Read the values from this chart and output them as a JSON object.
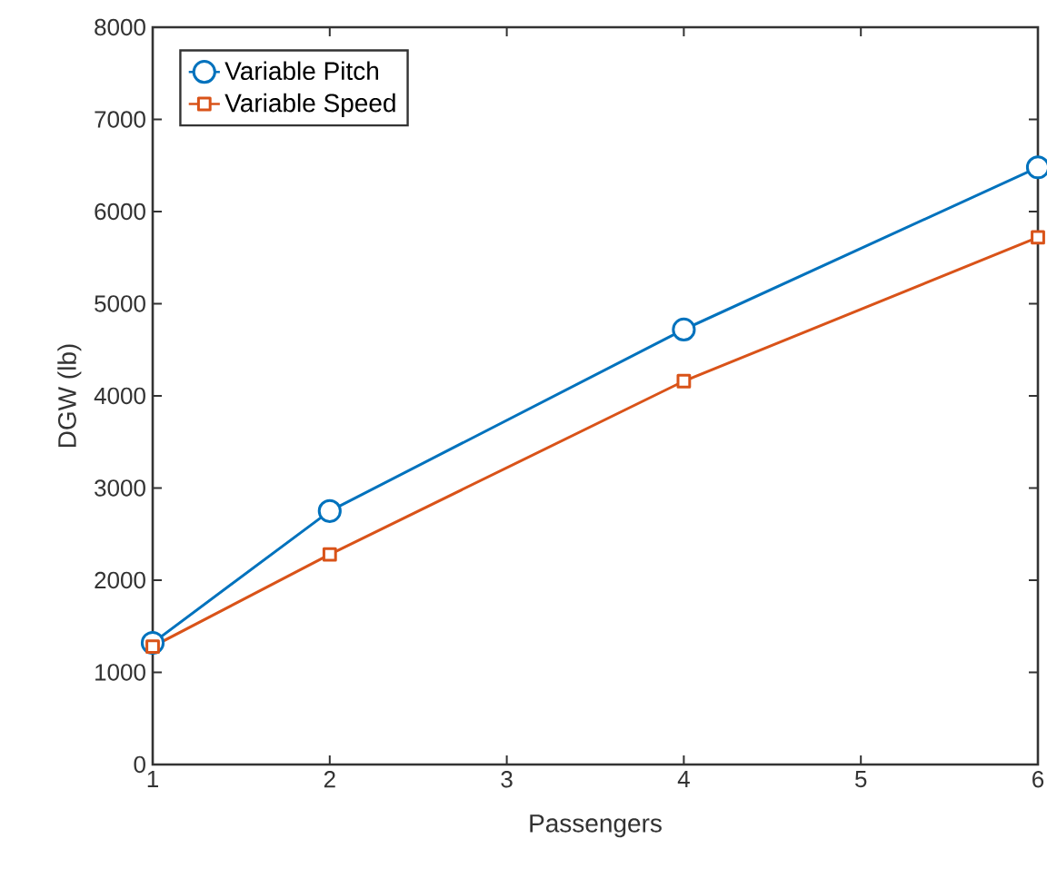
{
  "chart_data": {
    "type": "line",
    "xlabel": "Passengers",
    "ylabel": "DGW (lb)",
    "x": [
      1,
      2,
      4,
      6
    ],
    "series": [
      {
        "name": "Variable Pitch",
        "color": "#0072bd",
        "marker": "circle",
        "values": [
          1320,
          2750,
          4720,
          6480
        ]
      },
      {
        "name": "Variable Speed",
        "color": "#d95319",
        "marker": "square",
        "values": [
          1280,
          2280,
          4160,
          5720
        ]
      }
    ],
    "xlim": [
      1,
      6
    ],
    "xticks": [
      1,
      2,
      3,
      4,
      5,
      6
    ],
    "ylim": [
      0,
      8000
    ],
    "yticks": [
      0,
      1000,
      2000,
      3000,
      4000,
      5000,
      6000,
      7000,
      8000
    ],
    "grid": false,
    "legend": "top left",
    "line_style": "solid"
  }
}
